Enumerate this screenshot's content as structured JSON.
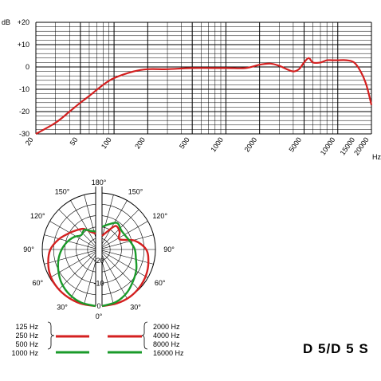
{
  "model": "D 5/D 5 S",
  "chart_data": [
    {
      "type": "line",
      "xscale": "log",
      "xlim": [
        20,
        20000
      ],
      "ylim": [
        -30,
        20
      ],
      "y_unit_label": "dB",
      "x_unit_label": "Hz",
      "y_ticks": [
        "+20",
        "+10",
        "0",
        "-10",
        "-20",
        "-30"
      ],
      "y_tick_values": [
        20,
        10,
        0,
        -10,
        -20,
        -30
      ],
      "x_ticks": [
        "20",
        "50",
        "100",
        "200",
        "500",
        "1000",
        "2000",
        "5000",
        "10000",
        "15000",
        "20000"
      ],
      "x_tick_values": [
        20,
        50,
        100,
        200,
        500,
        1000,
        2000,
        5000,
        10000,
        15000,
        20000
      ],
      "grid": true,
      "series": [
        {
          "color": "#d42020",
          "x": [
            20,
            30,
            40,
            50,
            60,
            80,
            100,
            150,
            200,
            300,
            500,
            1000,
            1500,
            2000,
            2500,
            3000,
            3500,
            4000,
            4500,
            5000,
            5500,
            6000,
            7000,
            8000,
            9000,
            10000,
            12000,
            14000,
            16000,
            18000,
            20000
          ],
          "y": [
            -30,
            -25,
            -20,
            -16,
            -13,
            -8,
            -5,
            -2,
            -1,
            -1,
            -0.5,
            -0.5,
            -0.5,
            1,
            1.5,
            0.5,
            -1,
            -2,
            -1,
            2,
            4,
            2,
            2,
            3,
            3,
            3,
            3,
            2,
            -2,
            -8,
            -17
          ]
        }
      ]
    },
    {
      "type": "polar",
      "angle_labels": [
        "180°",
        "150°",
        "120°",
        "90°",
        "60°",
        "30°",
        "0°"
      ],
      "radial_labels": [
        "-20",
        "-10",
        "0"
      ],
      "rlim": [
        -25,
        0
      ],
      "left_half": {
        "series": [
          {
            "frequencies": [
              "125 Hz",
              "250 Hz",
              "500 Hz"
            ],
            "color": "#d42020",
            "angles": [
              0,
              15,
              30,
              45,
              60,
              75,
              90,
              105,
              120,
              135,
              150,
              165,
              180
            ],
            "levels": [
              0,
              -0.2,
              -0.6,
              -1.1,
              -1.9,
              -3.3,
              -5,
              -8,
              -11,
              -13,
              -14.5,
              -17,
              -18
            ]
          },
          {
            "frequencies": [
              "1000 Hz"
            ],
            "color": "#1a9a2a",
            "angles": [
              0,
              15,
              30,
              45,
              60,
              75,
              90,
              105,
              120,
              135,
              150,
              165,
              180
            ],
            "levels": [
              0,
              -0.7,
              -2,
              -3.8,
              -6,
              -8,
              -10,
              -12,
              -14,
              -16,
              -15,
              -16.5,
              -17
            ]
          }
        ]
      },
      "right_half": {
        "series": [
          {
            "frequencies": [
              "2000 Hz",
              "4000 Hz",
              "8000 Hz"
            ],
            "color": "#d42020",
            "angles": [
              0,
              15,
              30,
              45,
              60,
              75,
              90,
              105,
              120,
              135,
              150,
              165,
              180
            ],
            "levels": [
              0,
              -0.3,
              -0.7,
              -1.5,
              -2.5,
              -3.8,
              -5.5,
              -10,
              -16,
              -14,
              -13,
              -17,
              -19
            ]
          },
          {
            "frequencies": [
              "16000 Hz"
            ],
            "color": "#1a9a2a",
            "angles": [
              0,
              15,
              30,
              45,
              60,
              75,
              90,
              105,
              120,
              135,
              150,
              165,
              180
            ],
            "levels": [
              0,
              -1,
              -3,
              -5.5,
              -7.5,
              -9.5,
              -10.5,
              -12,
              -13,
              -13,
              -11.5,
              -13.5,
              -15
            ]
          }
        ]
      }
    }
  ]
}
